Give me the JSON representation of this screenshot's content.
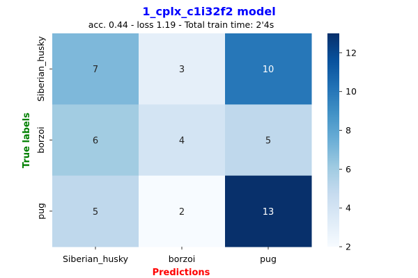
{
  "chart_data": {
    "type": "heatmap",
    "title": "1_cplx_c1i32f2 model",
    "subtitle": "acc. 0.44 - loss 1.19 - Total train time: 2'4s",
    "xlabel": "Predictions",
    "ylabel": "True labels",
    "x_categories": [
      "Siberian_husky",
      "borzoi",
      "pug"
    ],
    "y_categories": [
      "Siberian_husky",
      "borzoi",
      "pug"
    ],
    "values": [
      [
        7,
        3,
        10
      ],
      [
        6,
        4,
        5
      ],
      [
        5,
        2,
        13
      ]
    ],
    "colorbar": {
      "min": 2,
      "max": 13,
      "ticks": [
        2,
        4,
        6,
        8,
        10,
        12
      ]
    },
    "colormap": "Blues",
    "colors": {
      "title": "#0000ff",
      "xlabel": "#ff0000",
      "ylabel": "#008000"
    }
  }
}
